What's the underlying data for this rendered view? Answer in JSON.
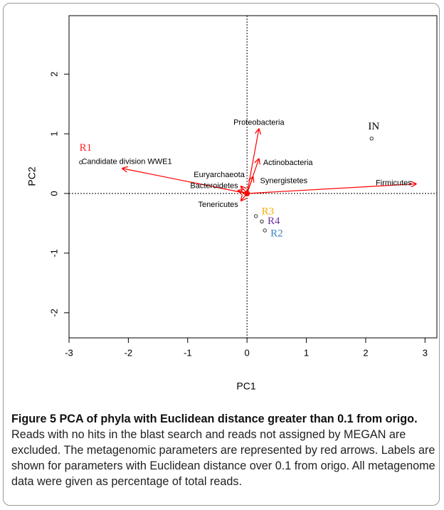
{
  "chart_data": {
    "type": "biplot",
    "x_label": "PC1",
    "y_label": "PC2",
    "xlim": [
      -3,
      3.2
    ],
    "ylim": [
      -2.42,
      2.98
    ],
    "xticks": [
      -3,
      -2,
      -1,
      0,
      1,
      2,
      3
    ],
    "yticks": [
      -2,
      -1,
      0,
      1,
      2
    ],
    "points": [
      {
        "name": "R1",
        "color": "#ff2020",
        "x": -2.8,
        "y": 0.52
      },
      {
        "name": "IN",
        "color": "#000000",
        "x": 2.1,
        "y": 0.92
      },
      {
        "name": "R3",
        "color": "#f0b000",
        "x": 0.15,
        "y": -0.38
      },
      {
        "name": "R4",
        "color": "#7030a0",
        "x": 0.25,
        "y": -0.47
      },
      {
        "name": "R2",
        "color": "#3a80c0",
        "x": 0.3,
        "y": -0.62
      }
    ],
    "arrows": {
      "color": "#ff0000",
      "names": [
        "Candidate division WWE1",
        "Proteobacteria",
        "Actinobacteria",
        "Synergistetes",
        "Euryarchaeota",
        "Bacteroidetes",
        "Tenericutes",
        "Firmicutes"
      ],
      "x": [
        -2.1,
        0.2,
        0.2,
        0.1,
        -0.1,
        -0.15,
        -0.1,
        2.85
      ],
      "y": [
        0.42,
        1.08,
        0.58,
        0.28,
        0.12,
        0.05,
        -0.12,
        0.16
      ]
    }
  },
  "caption": {
    "label": "Figure 5",
    "title": "PCA of phyla with Euclidean distance greater than 0.1 from origo.",
    "text": "Reads with no hits in the blast search and reads not assigned by MEGAN are excluded. The metagenomic parameters are represented by red arrows. Labels are shown for parameters with Euclidean distance over 0.1 from origo. All metagenome data were given as percentage of total reads."
  }
}
